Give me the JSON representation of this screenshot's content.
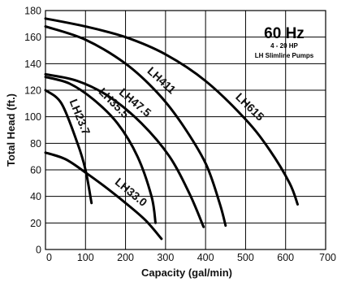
{
  "chart_data": {
    "type": "line",
    "xlabel": "Capacity (gal/min)",
    "ylabel": "Total Head (ft.)",
    "xlim": [
      0,
      700
    ],
    "ylim": [
      0,
      180
    ],
    "xticks": [
      0,
      100,
      200,
      300,
      400,
      500,
      600,
      700
    ],
    "yticks": [
      0,
      20,
      40,
      60,
      80,
      100,
      120,
      140,
      160,
      180
    ],
    "grid": true,
    "legend_box": {
      "title": "60 Hz",
      "line1": "4 - 20 HP",
      "line2": "LH Slimline Pumps",
      "position": "top-right"
    },
    "series": [
      {
        "name": "LH23.7",
        "x": [
          0,
          40,
          80,
          100,
          115
        ],
        "y": [
          120,
          110,
          80,
          60,
          35
        ]
      },
      {
        "name": "LH33.0",
        "x": [
          0,
          50,
          100,
          150,
          200,
          250,
          290
        ],
        "y": [
          73,
          68,
          58,
          47,
          35,
          22,
          8
        ]
      },
      {
        "name": "LH35.5",
        "x": [
          0,
          60,
          120,
          180,
          230,
          265,
          275
        ],
        "y": [
          130,
          125,
          113,
          95,
          70,
          40,
          20
        ]
      },
      {
        "name": "LH47.5",
        "x": [
          0,
          80,
          160,
          240,
          310,
          360,
          395
        ],
        "y": [
          132,
          127,
          115,
          95,
          70,
          42,
          17
        ]
      },
      {
        "name": "LH411",
        "x": [
          0,
          100,
          200,
          280,
          340,
          400,
          435,
          450
        ],
        "y": [
          168,
          158,
          140,
          118,
          95,
          65,
          35,
          18
        ]
      },
      {
        "name": "LH615",
        "x": [
          0,
          100,
          200,
          300,
          400,
          500,
          560,
          610,
          630
        ],
        "y": [
          174,
          168,
          160,
          147,
          127,
          98,
          75,
          50,
          34
        ]
      }
    ]
  }
}
